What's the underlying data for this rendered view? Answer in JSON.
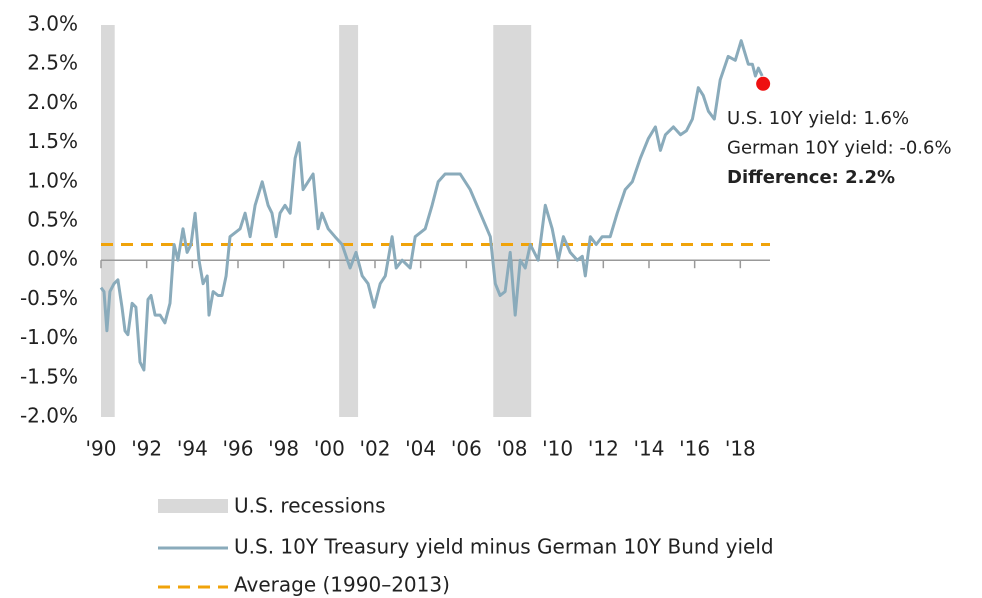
{
  "chart_data": {
    "type": "line",
    "series": [
      {
        "name": "U.S. 10Y Treasury yield minus German 10Y Bund yield",
        "color": "#8aabbb",
        "x": [
          1990.0,
          1990.13,
          1990.26,
          1990.39,
          1990.57,
          1990.74,
          1990.92,
          1991.05,
          1991.18,
          1991.36,
          1991.53,
          1991.71,
          1991.88,
          1992.06,
          1992.19,
          1992.37,
          1992.59,
          1992.8,
          1993.02,
          1993.2,
          1993.37,
          1993.59,
          1993.77,
          1993.94,
          1994.12,
          1994.29,
          1994.47,
          1994.65,
          1994.73,
          1994.91,
          1995.13,
          1995.3,
          1995.48,
          1995.65,
          1996.09,
          1996.31,
          1996.53,
          1996.75,
          1997.06,
          1997.32,
          1997.49,
          1997.67,
          1997.84,
          1998.06,
          1998.28,
          1998.5,
          1998.68,
          1998.85,
          1999.07,
          1999.29,
          1999.51,
          1999.68,
          1999.95,
          2000.25,
          2000.56,
          2000.91,
          2001.17,
          2001.44,
          2001.7,
          2001.96,
          2002.23,
          2002.45,
          2002.75,
          2002.93,
          2003.19,
          2003.54,
          2003.76,
          2004.2,
          2004.5,
          2004.77,
          2005.07,
          2005.38,
          2005.73,
          2006.17,
          2006.61,
          2007.05,
          2007.27,
          2007.48,
          2007.7,
          2007.92,
          2008.14,
          2008.36,
          2008.58,
          2008.8,
          2009.15,
          2009.46,
          2009.76,
          2010.03,
          2010.25,
          2010.55,
          2010.86,
          2011.08,
          2011.21,
          2011.43,
          2011.69,
          2011.95,
          2012.3,
          2012.61,
          2012.96,
          2013.27,
          2013.62,
          2013.97,
          2014.28,
          2014.5,
          2014.72,
          2015.07,
          2015.38,
          2015.64,
          2015.9,
          2016.16,
          2016.38,
          2016.6,
          2016.86,
          2017.12,
          2017.47,
          2017.78,
          2018.04,
          2018.35,
          2018.53,
          2018.66,
          2018.79,
          2018.96
        ],
        "values": [
          -0.35,
          -0.4,
          -0.9,
          -0.4,
          -0.3,
          -0.25,
          -0.6,
          -0.9,
          -0.95,
          -0.55,
          -0.6,
          -1.3,
          -1.4,
          -0.5,
          -0.45,
          -0.7,
          -0.7,
          -0.8,
          -0.55,
          0.2,
          0.0,
          0.4,
          0.1,
          0.2,
          0.6,
          0.0,
          -0.3,
          -0.2,
          -0.7,
          -0.4,
          -0.45,
          -0.45,
          -0.2,
          0.3,
          0.4,
          0.6,
          0.3,
          0.7,
          1.0,
          0.7,
          0.6,
          0.3,
          0.6,
          0.7,
          0.6,
          1.3,
          1.5,
          0.9,
          1.0,
          1.1,
          0.4,
          0.6,
          0.4,
          0.3,
          0.2,
          -0.1,
          0.1,
          -0.2,
          -0.3,
          -0.6,
          -0.3,
          -0.2,
          0.3,
          -0.1,
          0.0,
          -0.1,
          0.3,
          0.4,
          0.7,
          1.0,
          1.1,
          1.1,
          1.1,
          0.9,
          0.6,
          0.3,
          -0.3,
          -0.45,
          -0.4,
          0.1,
          -0.7,
          0.0,
          -0.1,
          0.2,
          0.0,
          0.7,
          0.4,
          0.0,
          0.3,
          0.1,
          0.0,
          0.05,
          -0.2,
          0.3,
          0.2,
          0.3,
          0.3,
          0.6,
          0.9,
          1.0,
          1.3,
          1.55,
          1.7,
          1.4,
          1.6,
          1.7,
          1.6,
          1.65,
          1.8,
          2.2,
          2.1,
          1.9,
          1.8,
          2.3,
          2.6,
          2.55,
          2.8,
          2.5,
          2.5,
          2.35,
          2.45,
          2.35
        ]
      }
    ],
    "recessions": {
      "name": "U.S. recessions",
      "color": "#d9d9d9",
      "spans": [
        [
          1990.0,
          1990.6
        ],
        [
          2000.43,
          2001.26
        ],
        [
          2007.18,
          2008.84
        ]
      ]
    },
    "average": {
      "name": "Average (1990–2013)",
      "value": 0.2,
      "color": "#f0a30a"
    },
    "marker": {
      "x": 2019.0,
      "y": 2.25,
      "color": "#ee1111"
    },
    "annotation": [
      "U.S. 10Y yield: 1.6%",
      "German 10Y yield: -0.6%",
      "Difference: 2.2%"
    ],
    "xlim": [
      1990,
      2019.3
    ],
    "ylim": [
      -2,
      3
    ],
    "xticks": [
      {
        "value": 1990,
        "label": "'90"
      },
      {
        "value": 1992,
        "label": "'92"
      },
      {
        "value": 1994,
        "label": "'94"
      },
      {
        "value": 1996,
        "label": "'96"
      },
      {
        "value": 1998,
        "label": "'98"
      },
      {
        "value": 2000,
        "label": "'00"
      },
      {
        "value": 2002,
        "label": "'02"
      },
      {
        "value": 2004,
        "label": "'04"
      },
      {
        "value": 2006,
        "label": "'06"
      },
      {
        "value": 2008,
        "label": "'08"
      },
      {
        "value": 2010,
        "label": "'10"
      },
      {
        "value": 2012,
        "label": "'12"
      },
      {
        "value": 2014,
        "label": "'14"
      },
      {
        "value": 2016,
        "label": "'16"
      },
      {
        "value": 2018,
        "label": "'18"
      }
    ],
    "yticks": [
      {
        "value": 3,
        "label": "3.0%"
      },
      {
        "value": 2.5,
        "label": "2.5%"
      },
      {
        "value": 2,
        "label": "2.0%"
      },
      {
        "value": 1.5,
        "label": "1.5%"
      },
      {
        "value": 1,
        "label": "1.0%"
      },
      {
        "value": 0.5,
        "label": "0.5%"
      },
      {
        "value": 0,
        "label": "0.0%"
      },
      {
        "value": -0.5,
        "label": "-0.5%"
      },
      {
        "value": -1,
        "label": "-1.0%"
      },
      {
        "value": -1.5,
        "label": "-1.5%"
      },
      {
        "value": -2,
        "label": "-2.0%"
      }
    ]
  }
}
